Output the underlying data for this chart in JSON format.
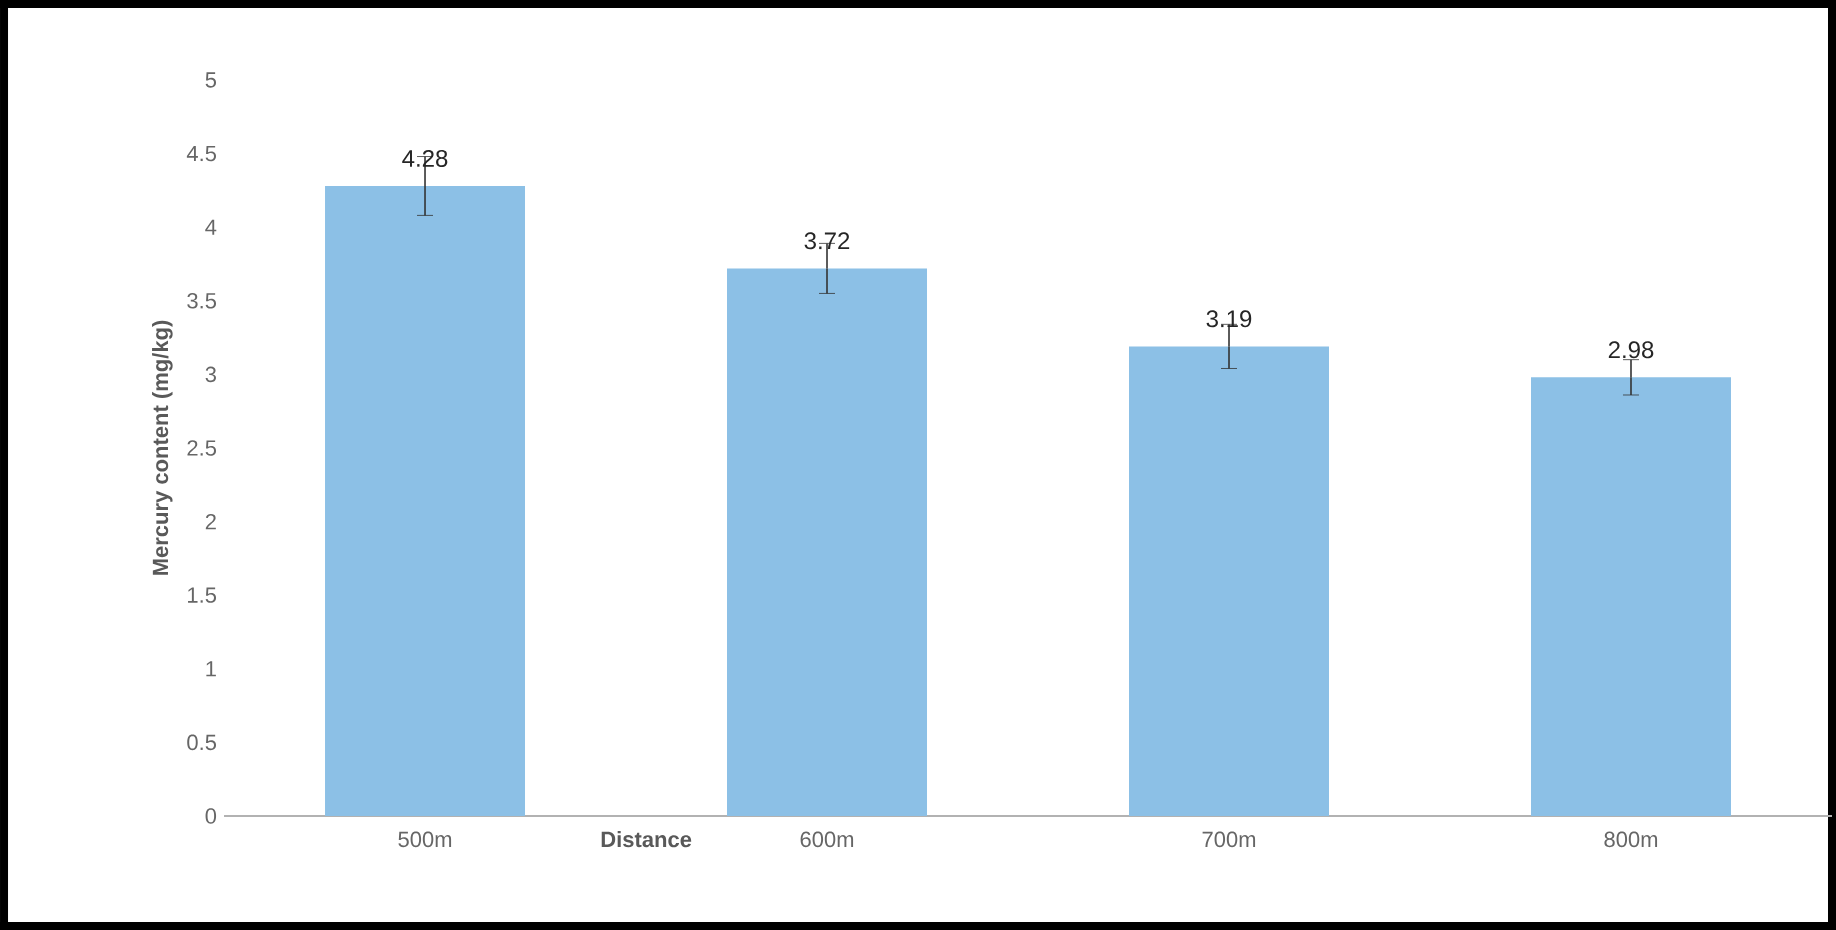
{
  "chart_data": {
    "type": "bar",
    "xlabel": "Distance",
    "ylabel": "Mercury content (mg/kg)",
    "categories": [
      "500m",
      "600m",
      "700m",
      "800m"
    ],
    "values": [
      4.28,
      3.72,
      3.19,
      2.98
    ],
    "errors": [
      0.2,
      0.17,
      0.15,
      0.12
    ],
    "color": "#8cc0e6",
    "data_labels": true,
    "grid": false,
    "ylim": [
      0,
      5
    ],
    "yticks": [
      0,
      0.5,
      1,
      1.5,
      2,
      2.5,
      3,
      3.5,
      4,
      4.5,
      5
    ]
  }
}
